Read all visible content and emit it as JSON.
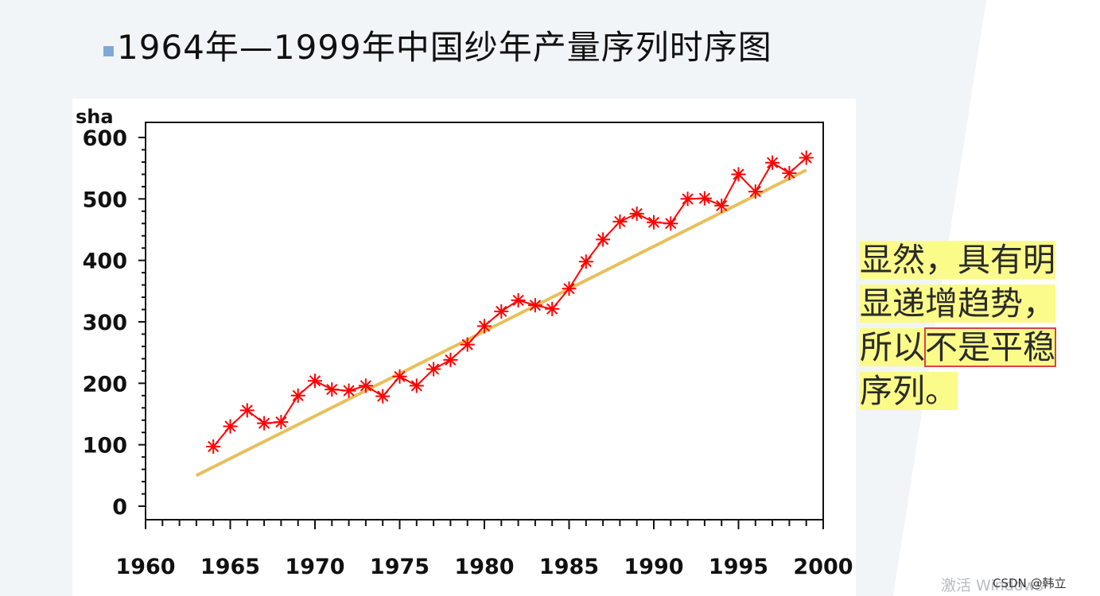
{
  "title": {
    "text": "1964年—1999年中国纱年产量序列时序图"
  },
  "colors": {
    "bullet": "#7fa8d8",
    "series": "#ff0000",
    "trend": "#e8bf5c",
    "highlight": "#fbfb8a",
    "box": "#d64545"
  },
  "chart_data": {
    "type": "line",
    "ylabel": "sha",
    "xlim": [
      1960,
      2000
    ],
    "ylim": [
      0,
      600
    ],
    "x_ticks": [
      "1960",
      "1965",
      "1970",
      "1975",
      "1980",
      "1985",
      "1990",
      "1995",
      "2000"
    ],
    "y_ticks": [
      "0",
      "100",
      "200",
      "300",
      "400",
      "500",
      "600"
    ],
    "grid": false,
    "marker": "asterisk",
    "x": [
      1964,
      1965,
      1966,
      1967,
      1968,
      1969,
      1970,
      1971,
      1972,
      1973,
      1974,
      1975,
      1976,
      1977,
      1978,
      1979,
      1980,
      1981,
      1982,
      1983,
      1984,
      1985,
      1986,
      1987,
      1988,
      1989,
      1990,
      1991,
      1992,
      1993,
      1994,
      1995,
      1996,
      1997,
      1998,
      1999
    ],
    "series": [
      {
        "values": [
          97,
          130,
          156,
          135,
          137,
          180,
          204,
          190,
          188,
          196,
          179,
          211,
          196,
          223,
          238,
          263,
          293,
          317,
          335,
          327,
          321,
          354,
          398,
          434,
          463,
          476,
          462,
          460,
          500,
          501,
          489,
          540,
          512,
          559,
          542,
          567
        ]
      }
    ],
    "trend_line": {
      "x": [
        1963,
        1999
      ],
      "y": [
        50,
        547
      ]
    }
  },
  "note": {
    "line1": "显然，具有明",
    "line2": "显递增趋势，",
    "line3a": "所以",
    "line3b": "不是平稳",
    "line4": "序列。"
  },
  "watermark": "激活 Windows",
  "credit": "CSDN @韩立"
}
